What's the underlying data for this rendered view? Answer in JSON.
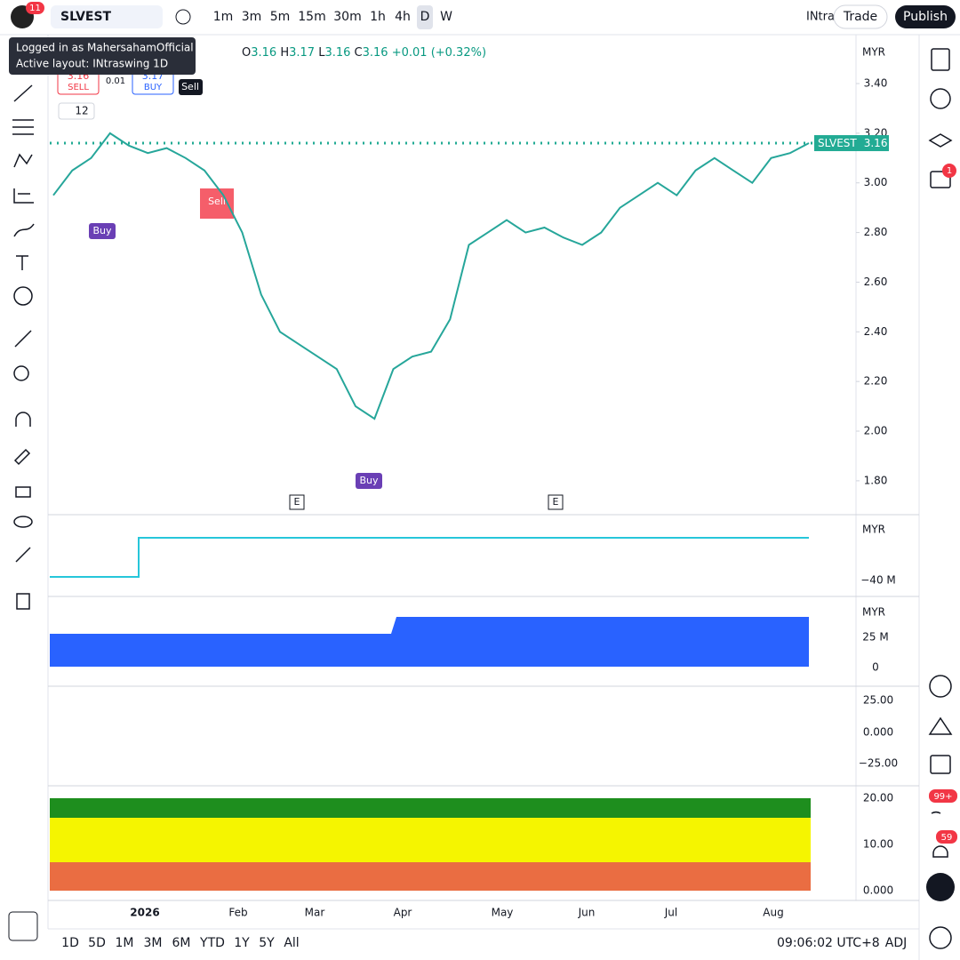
{
  "toolbar": {
    "badge": "11",
    "symbol": "SLVEST",
    "intervals": [
      "1m",
      "3m",
      "5m",
      "15m",
      "30m",
      "1h",
      "4h",
      "D",
      "W"
    ],
    "layout": "INtra",
    "trade": "Trade",
    "publish": "Publish"
  },
  "tooltip": {
    "line1": "Logged in as MahersahamOfficial",
    "line2": "Active layout: INtraswing 1D"
  },
  "legend": {
    "o_label": "O",
    "o": "3.16",
    "h_label": "H",
    "h": "3.17",
    "l_label": "L",
    "l": "3.16",
    "c_label": "C",
    "c": "3.16",
    "change": "+0.01 (+0.32%)"
  },
  "trade_buttons": {
    "sell_price": "3.16",
    "sell": "SELL",
    "spread": "0.01",
    "buy_price": "3.17",
    "buy": "BUY"
  },
  "indicator_count": "12",
  "signals": {
    "sell_top": "Sell",
    "sell_box": "Sell",
    "buy_left": "Buy",
    "buy_bottom": "Buy"
  },
  "currency": "MYR",
  "price_axis": {
    "ticks": [
      {
        "value": 3.4,
        "label": "3.40"
      },
      {
        "value": 3.2,
        "label": "3.20"
      },
      {
        "value": 3.0,
        "label": "3.00"
      },
      {
        "value": 2.8,
        "label": "2.80"
      },
      {
        "value": 2.6,
        "label": "2.60"
      },
      {
        "value": 2.4,
        "label": "2.40"
      },
      {
        "value": 2.2,
        "label": "2.20"
      },
      {
        "value": 2.0,
        "label": "2.00"
      },
      {
        "value": 1.8,
        "label": "1.80"
      }
    ]
  },
  "price": {
    "closes": [
      2.95,
      3.05,
      3.1,
      3.2,
      3.15,
      3.12,
      3.14,
      3.1,
      3.05,
      2.95,
      2.8,
      2.55,
      2.4,
      2.35,
      2.3,
      2.25,
      2.1,
      2.05,
      2.25,
      2.3,
      2.32,
      2.45,
      2.75,
      2.8,
      2.85,
      2.8,
      2.82,
      2.78,
      2.75,
      2.8,
      2.9,
      2.95,
      3.0,
      2.95,
      3.05,
      3.1,
      3.05,
      3.0,
      3.1,
      3.12,
      3.16
    ],
    "last_symbol": "SLVEST",
    "last": 3.16
  },
  "earnings": [
    "E",
    "E"
  ],
  "panes": [
    {
      "currency": "MYR",
      "label": "−40 M"
    },
    {
      "currency": "MYR",
      "labels": [
        "25 M",
        "0"
      ]
    },
    {
      "labels": [
        "25.00",
        "0.000",
        "−25.00"
      ]
    },
    {
      "labels": [
        "20.00",
        "10.00",
        "0.000"
      ]
    }
  ],
  "time_axis": [
    "2026",
    "Feb",
    "Mar",
    "Apr",
    "May",
    "Jun",
    "Jul",
    "Aug"
  ],
  "bottom": {
    "ranges": [
      "1D",
      "5D",
      "1M",
      "3M",
      "6M",
      "YTD",
      "1Y",
      "5Y",
      "All"
    ],
    "clock": "09:06:02 UTC+8",
    "adj": "ADJ"
  },
  "right_badges": {
    "alerts": "1",
    "feed": "99+",
    "notifications": "59"
  }
}
